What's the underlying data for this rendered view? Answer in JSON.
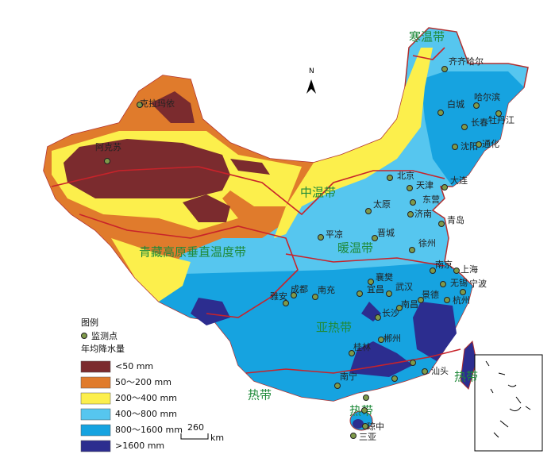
{
  "north": "N",
  "zones": [
    "寒温带",
    "中温带",
    "暖温带",
    "青藏高原垂直温度带",
    "亚热带",
    "热带",
    "热带",
    "热带"
  ],
  "cities": [
    "齐齐哈尔",
    "哈尔滨",
    "白城",
    "牡丹江",
    "长春",
    "沈阳",
    "通化",
    "大连",
    "北京",
    "天津",
    "东营",
    "太原",
    "济南",
    "青岛",
    "平凉",
    "晋城",
    "徐州",
    "南京",
    "上海",
    "宁波",
    "襄樊",
    "武汉",
    "宜昌",
    "无锡",
    "杭州",
    "景德",
    "南昌",
    "成都",
    "南充",
    "雅安",
    "长沙",
    "桂林",
    "郴州",
    "汕头",
    "南宁",
    "琼中",
    "三亚",
    "克拉玛依",
    "阿克苏"
  ],
  "legend": {
    "title": "图例",
    "station": "监测点",
    "subtitle": "年均降水量",
    "items": [
      {
        "label": "<50 mm",
        "color": "#7b2b2e"
      },
      {
        "label": "50～200 mm",
        "color": "#e07b2c"
      },
      {
        "label": "200～400 mm",
        "color": "#fcef4c"
      },
      {
        "label": "400～800 mm",
        "color": "#56c6ef"
      },
      {
        "label": "800～1600 mm",
        "color": "#16a3e0"
      },
      {
        "label": ">1600 mm",
        "color": "#2c2d8f"
      }
    ]
  },
  "scale": {
    "value": 260,
    "unit": "km"
  }
}
